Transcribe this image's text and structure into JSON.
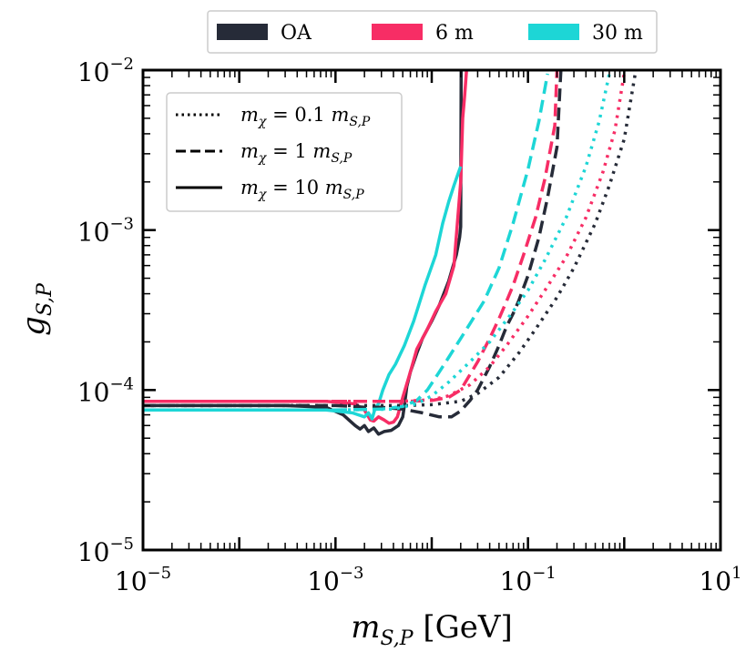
{
  "colors": {
    "OA": "#262b38",
    "6 m": "#f72d65",
    "30 m": "#1dd6d6",
    "axis": "#000000"
  },
  "top_legend": [
    {
      "key": "OA",
      "label": "OA"
    },
    {
      "key": "6 m",
      "label": "6 m"
    },
    {
      "key": "30 m",
      "label": "30 m"
    }
  ],
  "inner_legend": [
    {
      "style": "dotted",
      "prefix": "m",
      "sub": "χ",
      "eq": " = 0.1 ",
      "m2": "m",
      "sub2": "S,P"
    },
    {
      "style": "dashed",
      "prefix": "m",
      "sub": "χ",
      "eq": " = 1 ",
      "m2": "m",
      "sub2": "S,P"
    },
    {
      "style": "solid",
      "prefix": "m",
      "sub": "χ",
      "eq": " = 10 ",
      "m2": "m",
      "sub2": "S,P"
    }
  ],
  "chart_data": {
    "type": "line",
    "xscale": "log",
    "yscale": "log",
    "xlim": [
      1e-05,
      10
    ],
    "ylim": [
      1e-05,
      0.01
    ],
    "xlabel": {
      "var": "m",
      "sub": "S,P",
      "unit": " [GeV]"
    },
    "ylabel": {
      "var": "g",
      "sub": "S,P"
    },
    "x_ticks": [
      {
        "base": "10",
        "exp": "−5",
        "value": 1e-05
      },
      {
        "base": "10",
        "exp": "−3",
        "value": 0.001
      },
      {
        "base": "10",
        "exp": "−1",
        "value": 0.1
      },
      {
        "base": "10",
        "exp": "1",
        "value": 10
      }
    ],
    "y_ticks": [
      {
        "base": "10",
        "exp": "−5",
        "value": 1e-05
      },
      {
        "base": "10",
        "exp": "−4",
        "value": 0.0001
      },
      {
        "base": "10",
        "exp": "−3",
        "value": 0.001
      },
      {
        "base": "10",
        "exp": "−2",
        "value": 0.01
      }
    ],
    "series": [
      {
        "name": "OA, m_chi = 10 m_S,P",
        "color_key": "OA",
        "style": "solid",
        "x": [
          1e-05,
          0.0003,
          0.0008,
          0.0012,
          0.0016,
          0.0018,
          0.002,
          0.0022,
          0.0025,
          0.0028,
          0.0032,
          0.0038,
          0.0045,
          0.005,
          0.0052,
          0.0055,
          0.006,
          0.007,
          0.008,
          0.01,
          0.012,
          0.015,
          0.018,
          0.0195,
          0.02,
          0.0202
        ],
        "y": [
          8e-05,
          8e-05,
          7.8e-05,
          7e-05,
          6e-05,
          5.7e-05,
          6e-05,
          5.5e-05,
          5.8e-05,
          5.3e-05,
          5.5e-05,
          5.6e-05,
          6e-05,
          6.8e-05,
          8e-05,
          0.000105,
          0.00013,
          0.00017,
          0.00021,
          0.00027,
          0.00034,
          0.00048,
          0.0007,
          0.0009,
          0.00105,
          0.01
        ]
      },
      {
        "name": "6 m, m_chi = 10 m_S,P",
        "color_key": "6 m",
        "style": "solid",
        "x": [
          1e-05,
          0.0008,
          0.0016,
          0.002,
          0.0023,
          0.0025,
          0.0028,
          0.0032,
          0.0036,
          0.004,
          0.0044,
          0.005,
          0.006,
          0.007,
          0.009,
          0.011,
          0.014,
          0.017,
          0.02,
          0.021,
          0.022,
          0.023
        ],
        "y": [
          8.5e-05,
          8.5e-05,
          8.2e-05,
          7.5e-05,
          6.5e-05,
          6.4e-05,
          6.8e-05,
          6.5e-05,
          6.2e-05,
          6.3e-05,
          6.8e-05,
          9e-05,
          0.00013,
          0.00018,
          0.00024,
          0.00031,
          0.0004,
          0.0006,
          0.002,
          0.005,
          0.007,
          0.01
        ]
      },
      {
        "name": "30 m, m_chi = 10 m_S,P",
        "color_key": "30 m",
        "style": "solid",
        "x": [
          1e-05,
          0.0008,
          0.0015,
          0.002,
          0.0022,
          0.0024,
          0.0026,
          0.0028,
          0.0031,
          0.0036,
          0.0042,
          0.0052,
          0.0065,
          0.0085,
          0.011,
          0.013,
          0.015,
          0.017,
          0.019,
          0.02
        ],
        "y": [
          7.5e-05,
          7.5e-05,
          7.2e-05,
          6.8e-05,
          7.2e-05,
          6.6e-05,
          7.8e-05,
          8.2e-05,
          0.0001,
          0.000125,
          0.000145,
          0.00019,
          0.00027,
          0.00045,
          0.0007,
          0.0011,
          0.0015,
          0.0019,
          0.0023,
          0.0025
        ]
      },
      {
        "name": "OA, m_chi = 1 m_S,P",
        "color_key": "OA",
        "style": "dashed",
        "x": [
          1e-05,
          0.0005,
          0.001,
          0.0015,
          0.002,
          0.003,
          0.005,
          0.008,
          0.012,
          0.016,
          0.02,
          0.025,
          0.03,
          0.04,
          0.05,
          0.06,
          0.07,
          0.08,
          0.1,
          0.13,
          0.16,
          0.2,
          0.22
        ],
        "y": [
          8e-05,
          8e-05,
          8e-05,
          7.9e-05,
          7.8e-05,
          7.8e-05,
          7.6e-05,
          7.2e-05,
          6.8e-05,
          6.8e-05,
          7.4e-05,
          8.6e-05,
          0.0001,
          0.00014,
          0.00019,
          0.00025,
          0.0003,
          0.00036,
          0.00052,
          0.0009,
          0.0016,
          0.0033,
          0.01
        ]
      },
      {
        "name": "6 m, m_chi = 1 m_S,P",
        "color_key": "6 m",
        "style": "dashed",
        "x": [
          1e-05,
          0.001,
          0.003,
          0.006,
          0.01,
          0.015,
          0.02,
          0.025,
          0.03,
          0.035,
          0.04,
          0.05,
          0.06,
          0.07,
          0.09,
          0.12,
          0.15,
          0.19,
          0.2
        ],
        "y": [
          8.5e-05,
          8.5e-05,
          8.5e-05,
          8.5e-05,
          8.6e-05,
          9e-05,
          0.0001,
          0.000125,
          0.00015,
          0.00018,
          0.00021,
          0.00028,
          0.00036,
          0.00045,
          0.0007,
          0.0012,
          0.0021,
          0.0045,
          0.01
        ]
      },
      {
        "name": "30 m, m_chi = 1 m_S,P",
        "color_key": "30 m",
        "style": "dashed",
        "x": [
          1e-05,
          0.001,
          0.003,
          0.005,
          0.007,
          0.009,
          0.012,
          0.015,
          0.02,
          0.025,
          0.035,
          0.05,
          0.07,
          0.1,
          0.13,
          0.16
        ],
        "y": [
          7.5e-05,
          7.5e-05,
          7.6e-05,
          7.9e-05,
          8.6e-05,
          0.0001,
          0.00013,
          0.00016,
          0.00021,
          0.00026,
          0.00036,
          0.00058,
          0.0011,
          0.0024,
          0.0048,
          0.0095
        ]
      },
      {
        "name": "OA, m_chi = 0.1 m_S,P",
        "color_key": "OA",
        "style": "dotted",
        "x": [
          1e-05,
          0.001,
          0.005,
          0.01,
          0.02,
          0.03,
          0.05,
          0.08,
          0.12,
          0.2,
          0.3,
          0.5,
          0.7,
          1.0,
          1.3
        ],
        "y": [
          8e-05,
          8e-05,
          8e-05,
          8.1e-05,
          8.5e-05,
          9.5e-05,
          0.00012,
          0.00017,
          0.00024,
          0.00038,
          0.00058,
          0.0011,
          0.0019,
          0.0037,
          0.0095
        ]
      },
      {
        "name": "6 m, m_chi = 0.1 m_S,P",
        "color_key": "6 m",
        "style": "dotted",
        "x": [
          1e-05,
          0.001,
          0.005,
          0.01,
          0.015,
          0.025,
          0.04,
          0.06,
          0.1,
          0.15,
          0.25,
          0.4,
          0.6,
          0.8,
          1.0
        ],
        "y": [
          8.5e-05,
          8.5e-05,
          8.5e-05,
          8.7e-05,
          9.2e-05,
          0.000108,
          0.00014,
          0.00019,
          0.00029,
          0.00042,
          0.00068,
          0.0012,
          0.0023,
          0.0042,
          0.0095
        ]
      },
      {
        "name": "30 m, m_chi = 0.1 m_S,P",
        "color_key": "30 m",
        "style": "dotted",
        "x": [
          1e-05,
          0.001,
          0.004,
          0.007,
          0.01,
          0.015,
          0.025,
          0.04,
          0.07,
          0.1,
          0.15,
          0.25,
          0.4,
          0.55,
          0.7
        ],
        "y": [
          7.5e-05,
          7.5e-05,
          7.6e-05,
          8.2e-05,
          9.2e-05,
          0.000112,
          0.00015,
          0.0002,
          0.00031,
          0.00042,
          0.00065,
          0.0012,
          0.0025,
          0.0048,
          0.0095
        ]
      }
    ]
  }
}
